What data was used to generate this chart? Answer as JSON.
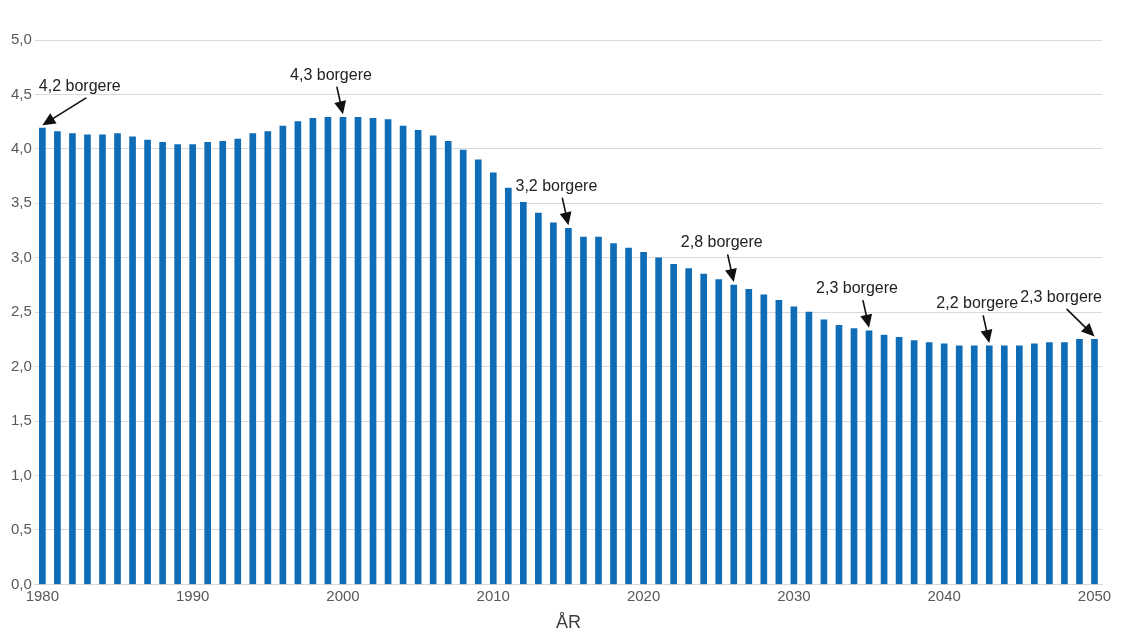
{
  "chart_data": {
    "type": "bar",
    "xlabel": "ÅR",
    "x": [
      1980,
      1981,
      1982,
      1983,
      1984,
      1985,
      1986,
      1987,
      1988,
      1989,
      1990,
      1991,
      1992,
      1993,
      1994,
      1995,
      1996,
      1997,
      1998,
      1999,
      2000,
      2001,
      2002,
      2003,
      2004,
      2005,
      2006,
      2007,
      2008,
      2009,
      2010,
      2011,
      2012,
      2013,
      2014,
      2015,
      2016,
      2017,
      2018,
      2019,
      2020,
      2021,
      2022,
      2023,
      2024,
      2025,
      2026,
      2027,
      2028,
      2029,
      2030,
      2031,
      2032,
      2033,
      2034,
      2035,
      2036,
      2037,
      2038,
      2039,
      2040,
      2041,
      2042,
      2043,
      2044,
      2045,
      2046,
      2047,
      2048,
      2049,
      2050
    ],
    "values": [
      4.19,
      4.16,
      4.14,
      4.13,
      4.13,
      4.14,
      4.11,
      4.08,
      4.06,
      4.04,
      4.04,
      4.06,
      4.07,
      4.09,
      4.14,
      4.16,
      4.21,
      4.25,
      4.28,
      4.29,
      4.29,
      4.29,
      4.28,
      4.27,
      4.21,
      4.17,
      4.12,
      4.07,
      3.99,
      3.9,
      3.78,
      3.64,
      3.51,
      3.41,
      3.32,
      3.27,
      3.19,
      3.19,
      3.13,
      3.09,
      3.05,
      3.0,
      2.94,
      2.9,
      2.85,
      2.8,
      2.75,
      2.71,
      2.66,
      2.61,
      2.55,
      2.5,
      2.43,
      2.38,
      2.35,
      2.33,
      2.29,
      2.27,
      2.24,
      2.22,
      2.21,
      2.19,
      2.19,
      2.19,
      2.19,
      2.19,
      2.21,
      2.22,
      2.22,
      2.25,
      2.25
    ],
    "color": "#0f6cb6",
    "xlim": [
      1979.5,
      2050.5
    ],
    "xticks": [
      1980,
      1990,
      2000,
      2010,
      2020,
      2030,
      2040,
      2050
    ],
    "ylim": [
      0,
      5
    ],
    "yticks": [
      {
        "value": 0,
        "label": "0,0"
      },
      {
        "value": 0.5,
        "label": "0,5"
      },
      {
        "value": 1,
        "label": "1,0"
      },
      {
        "value": 1.5,
        "label": "1,5"
      },
      {
        "value": 2,
        "label": "2,0"
      },
      {
        "value": 2.5,
        "label": "2,5"
      },
      {
        "value": 3,
        "label": "3,0"
      },
      {
        "value": 3.5,
        "label": "3,5"
      },
      {
        "value": 4,
        "label": "4,0"
      },
      {
        "value": 4.5,
        "label": "4,5"
      },
      {
        "value": 5,
        "label": "5,0"
      }
    ],
    "grid": "y",
    "legend": false,
    "annotations": [
      {
        "text": "4,2 borgere",
        "x": 1980,
        "y": 4.19
      },
      {
        "text": "4,3 borgere",
        "x": 2000,
        "y": 4.29
      },
      {
        "text": "3,2 borgere",
        "x": 2015,
        "y": 3.27
      },
      {
        "text": "2,8 borgere",
        "x": 2026,
        "y": 2.75
      },
      {
        "text": "2,3 borgere",
        "x": 2035,
        "y": 2.33
      },
      {
        "text": "2,2 borgere",
        "x": 2043,
        "y": 2.19
      },
      {
        "text": "2,3 borgere",
        "x": 2050,
        "y": 2.25
      }
    ]
  }
}
